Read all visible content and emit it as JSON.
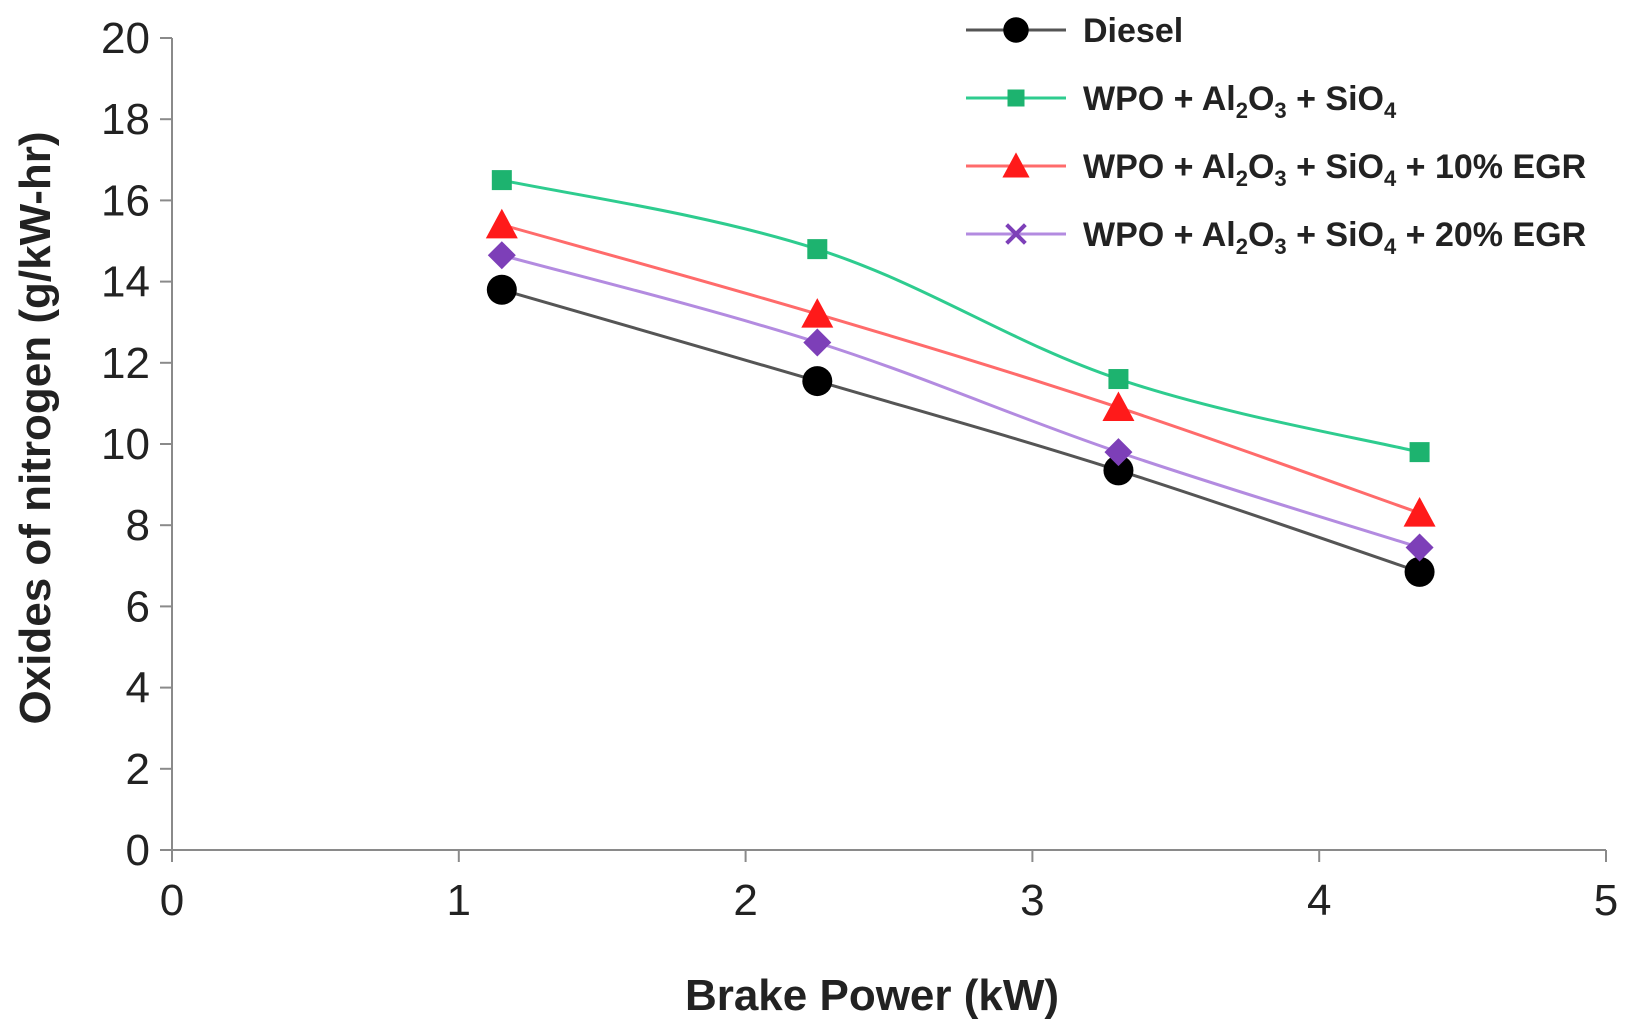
{
  "chart_data": {
    "type": "line",
    "title": "",
    "xlabel": "Brake Power (kW)",
    "ylabel": "Oxides of nitrogen (g/kW-hr)",
    "xlim": [
      0,
      5
    ],
    "ylim": [
      0,
      20
    ],
    "xticks": [
      "0",
      "1",
      "2",
      "3",
      "4",
      "5"
    ],
    "yticks": [
      "0",
      "2",
      "4",
      "6",
      "8",
      "10",
      "12",
      "14",
      "16",
      "18",
      "20"
    ],
    "grid": false,
    "legend_position": "top-right",
    "x": [
      1.15,
      2.25,
      3.3,
      4.35
    ],
    "series": [
      {
        "name": "Diesel",
        "legend_parts": [
          {
            "t": "Diesel"
          }
        ],
        "color": "#555555",
        "marker_color": "#000000",
        "marker": "circle",
        "values": [
          13.8,
          11.55,
          9.35,
          6.85
        ]
      },
      {
        "name": "WPO + Al2O3 + SiO4",
        "legend_parts": [
          {
            "t": "WPO + Al"
          },
          {
            "s": "2"
          },
          {
            "t": "O"
          },
          {
            "s": "3"
          },
          {
            "t": " + SiO"
          },
          {
            "s": "4"
          }
        ],
        "color": "#2ecc8f",
        "marker_color": "#1db36f",
        "marker": "square",
        "values": [
          16.5,
          14.8,
          11.6,
          9.8
        ]
      },
      {
        "name": "WPO + Al2O3 + SiO4 + 10% EGR",
        "legend_parts": [
          {
            "t": "WPO + Al"
          },
          {
            "s": "2"
          },
          {
            "t": "O"
          },
          {
            "s": "3"
          },
          {
            "t": " + SiO"
          },
          {
            "s": "4"
          },
          {
            "t": " + 10% EGR"
          }
        ],
        "color": "#ff6b6b",
        "marker_color": "#ff1a1a",
        "marker": "triangle",
        "values": [
          15.4,
          13.2,
          10.9,
          8.3
        ]
      },
      {
        "name": "WPO + Al2O3 + SiO4 + 20% EGR",
        "legend_parts": [
          {
            "t": "WPO + Al"
          },
          {
            "s": "2"
          },
          {
            "t": "O"
          },
          {
            "s": "3"
          },
          {
            "t": " + SiO"
          },
          {
            "s": "4"
          },
          {
            "t": " + 20% EGR"
          }
        ],
        "color": "#b38be0",
        "marker_color": "#7d3fb8",
        "marker": "diamond",
        "legend_marker": "cross",
        "values": [
          14.65,
          12.5,
          9.8,
          7.45
        ]
      }
    ]
  }
}
